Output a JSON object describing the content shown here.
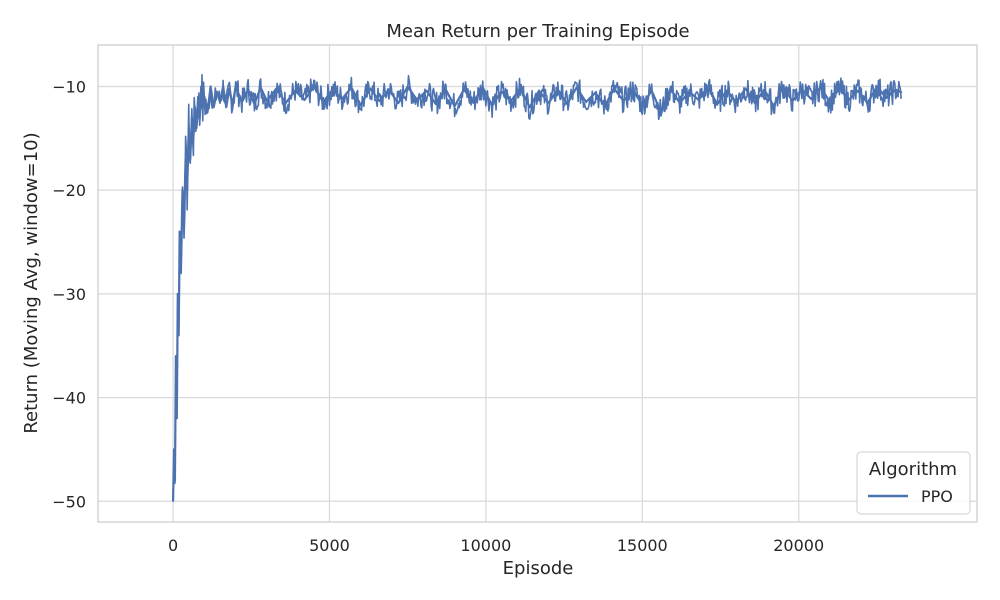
{
  "chart_data": {
    "type": "line",
    "title": "Mean Return per Training Episode",
    "xlabel": "Episode",
    "ylabel": "Return (Moving Avg, window=10)",
    "xlim": [
      -2400,
      25700
    ],
    "ylim": [
      -52,
      -6
    ],
    "x_ticks": [
      0,
      5000,
      10000,
      15000,
      20000
    ],
    "x_tick_labels": [
      "0",
      "5000",
      "10000",
      "15000",
      "20000"
    ],
    "y_ticks": [
      -50,
      -40,
      -30,
      -20,
      -10
    ],
    "y_tick_labels": [
      "−50",
      "−40",
      "−30",
      "−20",
      "−10"
    ],
    "grid": true,
    "legend": {
      "title": "Algorithm",
      "placement": "lower-right"
    },
    "series": [
      {
        "name": "PPO",
        "color": "#4c72b0",
        "x": [
          0,
          30,
          60,
          90,
          120,
          150,
          180,
          210,
          250,
          300,
          350,
          400,
          450,
          500,
          550,
          600,
          650,
          700,
          750,
          800,
          850,
          900,
          950,
          1000,
          1100,
          1200,
          1300,
          1400,
          1500,
          1600,
          1700,
          1800,
          1900,
          2000,
          2200,
          2400,
          2600,
          2800,
          3000,
          3300,
          3600,
          3900,
          4200,
          4500,
          4800,
          5100,
          5400,
          5700,
          6000,
          6300,
          6600,
          6900,
          7200,
          7500,
          7800,
          8100,
          8400,
          8700,
          9000,
          9300,
          9600,
          9900,
          10200,
          10500,
          10800,
          11100,
          11400,
          11700,
          12000,
          12300,
          12600,
          12900,
          13200,
          13500,
          13800,
          14100,
          14400,
          14700,
          15000,
          15300,
          15600,
          15900,
          16200,
          16500,
          16800,
          17100,
          17400,
          17700,
          18000,
          18300,
          18600,
          18900,
          19200,
          19500,
          19800,
          20100,
          20400,
          20700,
          21000,
          21300,
          21600,
          21900,
          22200,
          22500,
          22800,
          23100,
          23300
        ],
        "values": [
          -50,
          -45,
          -48,
          -36,
          -42,
          -30,
          -34,
          -24,
          -28,
          -20,
          -23,
          -17,
          -20,
          -14,
          -17,
          -13,
          -15,
          -12,
          -14,
          -11,
          -13,
          -10,
          -12,
          -11,
          -12.5,
          -10,
          -12,
          -10.5,
          -11.5,
          -10,
          -12,
          -10.2,
          -11.8,
          -10,
          -11.5,
          -10.3,
          -11.7,
          -10.1,
          -11.4,
          -10.2,
          -11.6,
          -10.4,
          -11.3,
          -10.0,
          -11.5,
          -10.3,
          -11.2,
          -10.1,
          -11.8,
          -10.2,
          -11.4,
          -10.3,
          -11.6,
          -10.0,
          -11.3,
          -10.4,
          -11.7,
          -10.2,
          -11.9,
          -10.3,
          -11.5,
          -10.1,
          -11.8,
          -10.5,
          -11.4,
          -10.2,
          -12.0,
          -10.4,
          -11.6,
          -10.3,
          -11.7,
          -10.1,
          -11.5,
          -10.6,
          -11.9,
          -10.2,
          -11.4,
          -10.3,
          -11.8,
          -10.4,
          -12.5,
          -10.2,
          -11.6,
          -10.5,
          -11.3,
          -10.1,
          -11.7,
          -10.4,
          -11.5,
          -10.2,
          -11.6,
          -10.3,
          -11.9,
          -10.0,
          -11.4,
          -10.3,
          -11.2,
          -10.1,
          -11.5,
          -10.2,
          -11.3,
          -10.4,
          -11.6,
          -10.0,
          -11.1,
          -10.3,
          -10.6
        ]
      }
    ]
  }
}
